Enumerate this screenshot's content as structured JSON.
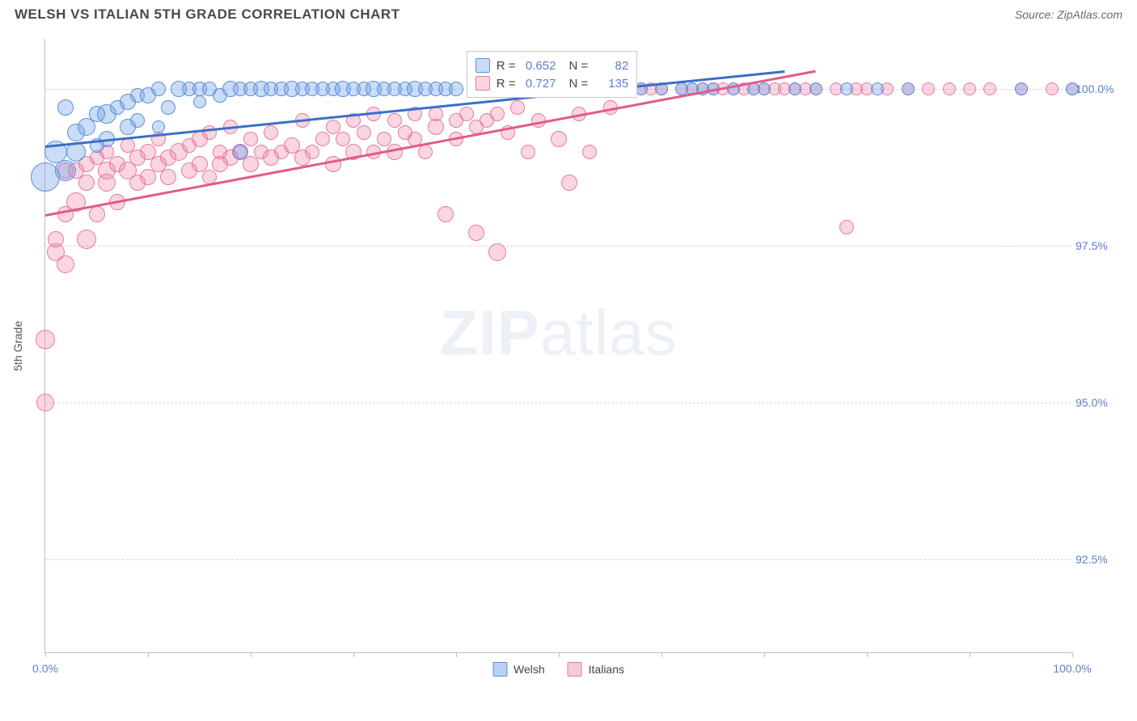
{
  "header": {
    "title": "WELSH VS ITALIAN 5TH GRADE CORRELATION CHART",
    "source": "Source: ZipAtlas.com"
  },
  "chart": {
    "type": "scatter",
    "y_axis_label": "5th Grade",
    "x_range": [
      0,
      100
    ],
    "y_range": [
      91,
      100.8
    ],
    "x_ticks": [
      0,
      10,
      20,
      30,
      40,
      50,
      60,
      70,
      80,
      90,
      100
    ],
    "x_tick_labels": {
      "0": "0.0%",
      "100": "100.0%"
    },
    "y_gridlines": [
      92.5,
      95.0,
      97.5,
      100.0
    ],
    "y_tick_labels": {
      "92.5": "92.5%",
      "95.0": "95.0%",
      "97.5": "97.5%",
      "100.0": "100.0%"
    },
    "grid_color": "#d8d8d8",
    "axis_color": "#bfbfbf",
    "tick_label_color": "#5b7fd1",
    "background_color": "#ffffff",
    "series": [
      {
        "name": "Welsh",
        "fill_color": "rgba(106,154,232,0.35)",
        "stroke_color": "#5a8fd8",
        "line_color": "#3a6fc8",
        "r_value": "0.652",
        "n_value": "82",
        "trend": {
          "x1": 0,
          "y1": 99.1,
          "x2": 72,
          "y2": 100.3
        },
        "points": [
          [
            0,
            98.6,
            18
          ],
          [
            1,
            99.0,
            14
          ],
          [
            2,
            98.7,
            13
          ],
          [
            2,
            99.7,
            10
          ],
          [
            3,
            99.3,
            11
          ],
          [
            3,
            99.0,
            12
          ],
          [
            4,
            99.4,
            11
          ],
          [
            5,
            99.6,
            10
          ],
          [
            5,
            99.1,
            9
          ],
          [
            6,
            99.6,
            12
          ],
          [
            6,
            99.2,
            10
          ],
          [
            7,
            99.7,
            9
          ],
          [
            8,
            99.8,
            10
          ],
          [
            8,
            99.4,
            10
          ],
          [
            9,
            99.9,
            9
          ],
          [
            9,
            99.5,
            9
          ],
          [
            10,
            99.9,
            10
          ],
          [
            11,
            100.0,
            9
          ],
          [
            11,
            99.4,
            8
          ],
          [
            12,
            99.7,
            9
          ],
          [
            13,
            100.0,
            10
          ],
          [
            14,
            100.0,
            9
          ],
          [
            15,
            99.8,
            8
          ],
          [
            15,
            100.0,
            9
          ],
          [
            16,
            100.0,
            9
          ],
          [
            17,
            99.9,
            9
          ],
          [
            18,
            100.0,
            10
          ],
          [
            19,
            100.0,
            9
          ],
          [
            19,
            99.0,
            9
          ],
          [
            20,
            100.0,
            9
          ],
          [
            21,
            100.0,
            10
          ],
          [
            22,
            100.0,
            9
          ],
          [
            23,
            100.0,
            9
          ],
          [
            24,
            100.0,
            10
          ],
          [
            25,
            100.0,
            9
          ],
          [
            26,
            100.0,
            9
          ],
          [
            27,
            100.0,
            9
          ],
          [
            28,
            100.0,
            9
          ],
          [
            29,
            100.0,
            10
          ],
          [
            30,
            100.0,
            9
          ],
          [
            31,
            100.0,
            9
          ],
          [
            32,
            100.0,
            10
          ],
          [
            33,
            100.0,
            9
          ],
          [
            34,
            100.0,
            9
          ],
          [
            35,
            100.0,
            9
          ],
          [
            36,
            100.0,
            10
          ],
          [
            37,
            100.0,
            9
          ],
          [
            38,
            100.0,
            9
          ],
          [
            39,
            100.0,
            9
          ],
          [
            40,
            100.0,
            9
          ],
          [
            43,
            100.0,
            9
          ],
          [
            47,
            100.0,
            8
          ],
          [
            50,
            100.0,
            8
          ],
          [
            52,
            100.0,
            8
          ],
          [
            55,
            100.0,
            8
          ],
          [
            58,
            100.0,
            8
          ],
          [
            60,
            100.0,
            8
          ],
          [
            62,
            100.0,
            8
          ],
          [
            63,
            100.0,
            8
          ],
          [
            64,
            100.0,
            8
          ],
          [
            65,
            100.0,
            8
          ],
          [
            67,
            100.0,
            8
          ],
          [
            69,
            100.0,
            8
          ],
          [
            70,
            100.0,
            8
          ],
          [
            73,
            100.0,
            8
          ],
          [
            75,
            100.0,
            8
          ],
          [
            78,
            100.0,
            8
          ],
          [
            81,
            100.0,
            8
          ],
          [
            84,
            100.0,
            8
          ],
          [
            95,
            100.0,
            8
          ],
          [
            100,
            100.0,
            8
          ]
        ]
      },
      {
        "name": "Italians",
        "fill_color": "rgba(235,120,160,0.30)",
        "stroke_color": "#e879a0",
        "line_color": "#e15b8a",
        "r_value": "0.727",
        "n_value": "135",
        "trend": {
          "x1": 0,
          "y1": 98.0,
          "x2": 75,
          "y2": 100.3
        },
        "points": [
          [
            0,
            95.0,
            11
          ],
          [
            0,
            96.0,
            12
          ],
          [
            1,
            97.4,
            11
          ],
          [
            1,
            97.6,
            10
          ],
          [
            2,
            97.2,
            11
          ],
          [
            2,
            98.0,
            10
          ],
          [
            2,
            98.7,
            10
          ],
          [
            3,
            98.2,
            12
          ],
          [
            3,
            98.7,
            10
          ],
          [
            4,
            97.6,
            12
          ],
          [
            4,
            98.5,
            10
          ],
          [
            4,
            98.8,
            10
          ],
          [
            5,
            98.0,
            10
          ],
          [
            5,
            98.9,
            9
          ],
          [
            6,
            98.5,
            11
          ],
          [
            6,
            98.7,
            11
          ],
          [
            6,
            99.0,
            9
          ],
          [
            7,
            98.2,
            10
          ],
          [
            7,
            98.8,
            10
          ],
          [
            8,
            98.7,
            11
          ],
          [
            8,
            99.1,
            9
          ],
          [
            9,
            98.5,
            10
          ],
          [
            9,
            98.9,
            10
          ],
          [
            10,
            98.6,
            10
          ],
          [
            10,
            99.0,
            10
          ],
          [
            11,
            98.8,
            10
          ],
          [
            11,
            99.2,
            9
          ],
          [
            12,
            98.6,
            10
          ],
          [
            12,
            98.9,
            10
          ],
          [
            13,
            99.0,
            11
          ],
          [
            14,
            98.7,
            10
          ],
          [
            14,
            99.1,
            9
          ],
          [
            15,
            98.8,
            10
          ],
          [
            15,
            99.2,
            10
          ],
          [
            16,
            98.6,
            9
          ],
          [
            16,
            99.3,
            9
          ],
          [
            17,
            98.8,
            10
          ],
          [
            17,
            99.0,
            9
          ],
          [
            18,
            98.9,
            10
          ],
          [
            18,
            99.4,
            9
          ],
          [
            19,
            99.0,
            10
          ],
          [
            20,
            98.8,
            10
          ],
          [
            20,
            99.2,
            9
          ],
          [
            21,
            99.0,
            9
          ],
          [
            22,
            98.9,
            10
          ],
          [
            22,
            99.3,
            9
          ],
          [
            23,
            99.0,
            9
          ],
          [
            24,
            99.1,
            10
          ],
          [
            25,
            98.9,
            10
          ],
          [
            25,
            99.5,
            9
          ],
          [
            26,
            99.0,
            9
          ],
          [
            27,
            99.2,
            9
          ],
          [
            28,
            98.8,
            10
          ],
          [
            28,
            99.4,
            9
          ],
          [
            29,
            99.2,
            9
          ],
          [
            30,
            99.0,
            10
          ],
          [
            30,
            99.5,
            9
          ],
          [
            31,
            99.3,
            9
          ],
          [
            32,
            99.0,
            9
          ],
          [
            32,
            99.6,
            9
          ],
          [
            33,
            99.2,
            9
          ],
          [
            34,
            99.0,
            10
          ],
          [
            34,
            99.5,
            9
          ],
          [
            35,
            99.3,
            9
          ],
          [
            36,
            99.2,
            9
          ],
          [
            36,
            99.6,
            9
          ],
          [
            37,
            99.0,
            9
          ],
          [
            38,
            99.4,
            10
          ],
          [
            38,
            99.6,
            9
          ],
          [
            39,
            98.0,
            10
          ],
          [
            40,
            99.2,
            9
          ],
          [
            40,
            99.5,
            9
          ],
          [
            41,
            99.6,
            9
          ],
          [
            42,
            97.7,
            10
          ],
          [
            42,
            99.4,
            9
          ],
          [
            43,
            99.5,
            9
          ],
          [
            44,
            97.4,
            11
          ],
          [
            44,
            99.6,
            9
          ],
          [
            45,
            99.3,
            9
          ],
          [
            46,
            99.7,
            9
          ],
          [
            47,
            99.0,
            9
          ],
          [
            48,
            99.5,
            9
          ],
          [
            50,
            99.2,
            10
          ],
          [
            51,
            98.5,
            10
          ],
          [
            52,
            99.6,
            9
          ],
          [
            53,
            99.0,
            9
          ],
          [
            55,
            99.7,
            9
          ],
          [
            56,
            100.0,
            8
          ],
          [
            58,
            100.0,
            8
          ],
          [
            59,
            100.0,
            8
          ],
          [
            60,
            100.0,
            8
          ],
          [
            62,
            100.0,
            8
          ],
          [
            63,
            100.0,
            8
          ],
          [
            64,
            100.0,
            8
          ],
          [
            65,
            100.0,
            8
          ],
          [
            66,
            100.0,
            8
          ],
          [
            67,
            100.0,
            8
          ],
          [
            68,
            100.0,
            8
          ],
          [
            69,
            100.0,
            8
          ],
          [
            70,
            100.0,
            8
          ],
          [
            71,
            100.0,
            8
          ],
          [
            72,
            100.0,
            8
          ],
          [
            73,
            100.0,
            8
          ],
          [
            74,
            100.0,
            8
          ],
          [
            75,
            100.0,
            8
          ],
          [
            77,
            100.0,
            8
          ],
          [
            78,
            97.8,
            9
          ],
          [
            79,
            100.0,
            8
          ],
          [
            80,
            100.0,
            8
          ],
          [
            82,
            100.0,
            8
          ],
          [
            84,
            100.0,
            8
          ],
          [
            86,
            100.0,
            8
          ],
          [
            88,
            100.0,
            8
          ],
          [
            90,
            100.0,
            8
          ],
          [
            92,
            100.0,
            8
          ],
          [
            95,
            100.0,
            8
          ],
          [
            98,
            100.0,
            8
          ],
          [
            100,
            100.0,
            8
          ]
        ]
      }
    ],
    "bottom_legend": [
      {
        "label": "Welsh",
        "swatch_fill": "rgba(106,154,232,0.45)",
        "swatch_border": "#5a8fd8"
      },
      {
        "label": "Italians",
        "swatch_fill": "rgba(235,120,160,0.40)",
        "swatch_border": "#e879a0"
      }
    ],
    "stats_box": {
      "left_pct": 41,
      "top_pct": 2
    },
    "watermark": {
      "zip": "ZIP",
      "rest": "atlas"
    }
  }
}
